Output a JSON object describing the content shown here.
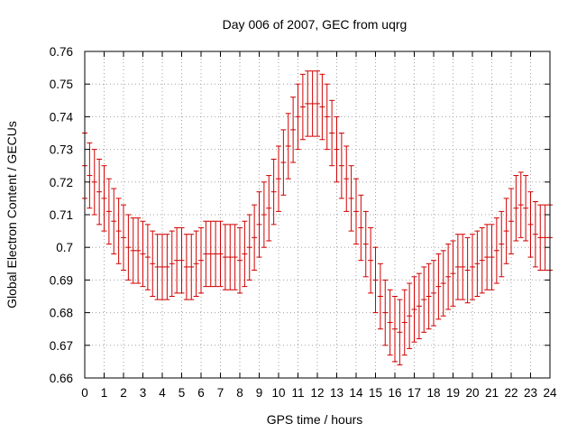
{
  "colors": {
    "series": "#d00000",
    "grid": "#a0a0a0",
    "frame": "#000000"
  },
  "chart_data": {
    "type": "scatter",
    "title": "Day 006 of 2007, GEC from uqrg",
    "xlabel": "GPS time / hours",
    "ylabel": "Global Electron Content / GECUs",
    "xlim": [
      0,
      24
    ],
    "ylim": [
      0.66,
      0.76
    ],
    "grid": true,
    "error_bars": true,
    "xticks": [
      0,
      1,
      2,
      3,
      4,
      5,
      6,
      7,
      8,
      9,
      10,
      11,
      12,
      13,
      14,
      15,
      16,
      17,
      18,
      19,
      20,
      21,
      22,
      23,
      24
    ],
    "xtick_labels": [
      "0",
      "1",
      "2",
      "3",
      "4",
      "5",
      "6",
      "7",
      "8",
      "9",
      "10",
      "11",
      "12",
      "13",
      "14",
      "15",
      "16",
      "17",
      "18",
      "19",
      "20",
      "21",
      "22",
      "23",
      "24"
    ],
    "yticks": [
      0.66,
      0.67,
      0.68,
      0.69,
      0.7,
      0.71,
      0.72,
      0.73,
      0.74,
      0.75,
      0.76
    ],
    "ytick_labels": [
      "0.66",
      "0.67",
      "0.68",
      "0.69",
      "0.7",
      "0.71",
      "0.72",
      "0.73",
      "0.74",
      "0.75",
      "0.76"
    ],
    "series": [
      {
        "x": [
          0,
          0.25,
          0.5,
          0.75,
          1,
          1.25,
          1.5,
          1.75,
          2,
          2.25,
          2.5,
          2.75,
          3,
          3.25,
          3.5,
          3.75,
          4,
          4.25,
          4.5,
          4.75,
          5,
          5.25,
          5.5,
          5.75,
          6,
          6.25,
          6.5,
          6.75,
          7,
          7.25,
          7.5,
          7.75,
          8,
          8.25,
          8.5,
          8.75,
          9,
          9.25,
          9.5,
          9.75,
          10,
          10.25,
          10.5,
          10.75,
          11,
          11.25,
          11.5,
          11.75,
          12,
          12.25,
          12.5,
          12.75,
          13,
          13.25,
          13.5,
          13.75,
          14,
          14.25,
          14.5,
          14.75,
          15,
          15.25,
          15.5,
          15.75,
          16,
          16.25,
          16.5,
          16.75,
          17,
          17.25,
          17.5,
          17.75,
          18,
          18.25,
          18.5,
          18.75,
          19,
          19.25,
          19.5,
          19.75,
          20,
          20.25,
          20.5,
          20.75,
          21,
          21.25,
          21.5,
          21.75,
          22,
          22.25,
          22.5,
          22.75,
          23,
          23.25,
          23.5,
          23.75,
          24
        ],
        "y": [
          0.725,
          0.722,
          0.72,
          0.717,
          0.715,
          0.711,
          0.708,
          0.705,
          0.703,
          0.7,
          0.699,
          0.699,
          0.698,
          0.697,
          0.695,
          0.694,
          0.694,
          0.694,
          0.695,
          0.696,
          0.696,
          0.694,
          0.694,
          0.695,
          0.696,
          0.698,
          0.698,
          0.698,
          0.698,
          0.697,
          0.697,
          0.697,
          0.696,
          0.698,
          0.7,
          0.703,
          0.707,
          0.71,
          0.712,
          0.717,
          0.721,
          0.726,
          0.731,
          0.736,
          0.74,
          0.743,
          0.744,
          0.744,
          0.744,
          0.743,
          0.74,
          0.735,
          0.73,
          0.725,
          0.721,
          0.715,
          0.711,
          0.706,
          0.701,
          0.696,
          0.69,
          0.685,
          0.68,
          0.677,
          0.675,
          0.674,
          0.677,
          0.679,
          0.681,
          0.682,
          0.684,
          0.685,
          0.686,
          0.688,
          0.689,
          0.691,
          0.692,
          0.694,
          0.694,
          0.693,
          0.694,
          0.695,
          0.696,
          0.697,
          0.697,
          0.699,
          0.701,
          0.705,
          0.708,
          0.712,
          0.713,
          0.712,
          0.707,
          0.704,
          0.703,
          0.703,
          0.703
        ],
        "err": [
          0.01,
          0.01,
          0.01,
          0.01,
          0.01,
          0.01,
          0.01,
          0.01,
          0.01,
          0.01,
          0.01,
          0.01,
          0.01,
          0.01,
          0.01,
          0.01,
          0.01,
          0.01,
          0.01,
          0.01,
          0.01,
          0.01,
          0.01,
          0.01,
          0.01,
          0.01,
          0.01,
          0.01,
          0.01,
          0.01,
          0.01,
          0.01,
          0.01,
          0.01,
          0.01,
          0.01,
          0.01,
          0.01,
          0.01,
          0.01,
          0.01,
          0.01,
          0.01,
          0.01,
          0.01,
          0.01,
          0.01,
          0.01,
          0.01,
          0.01,
          0.01,
          0.01,
          0.01,
          0.01,
          0.01,
          0.01,
          0.01,
          0.01,
          0.01,
          0.01,
          0.01,
          0.01,
          0.01,
          0.01,
          0.01,
          0.01,
          0.01,
          0.01,
          0.01,
          0.01,
          0.01,
          0.01,
          0.01,
          0.01,
          0.01,
          0.01,
          0.01,
          0.01,
          0.01,
          0.01,
          0.01,
          0.01,
          0.01,
          0.01,
          0.01,
          0.01,
          0.01,
          0.01,
          0.01,
          0.01,
          0.01,
          0.01,
          0.01,
          0.01,
          0.01,
          0.01,
          0.01
        ]
      }
    ]
  }
}
